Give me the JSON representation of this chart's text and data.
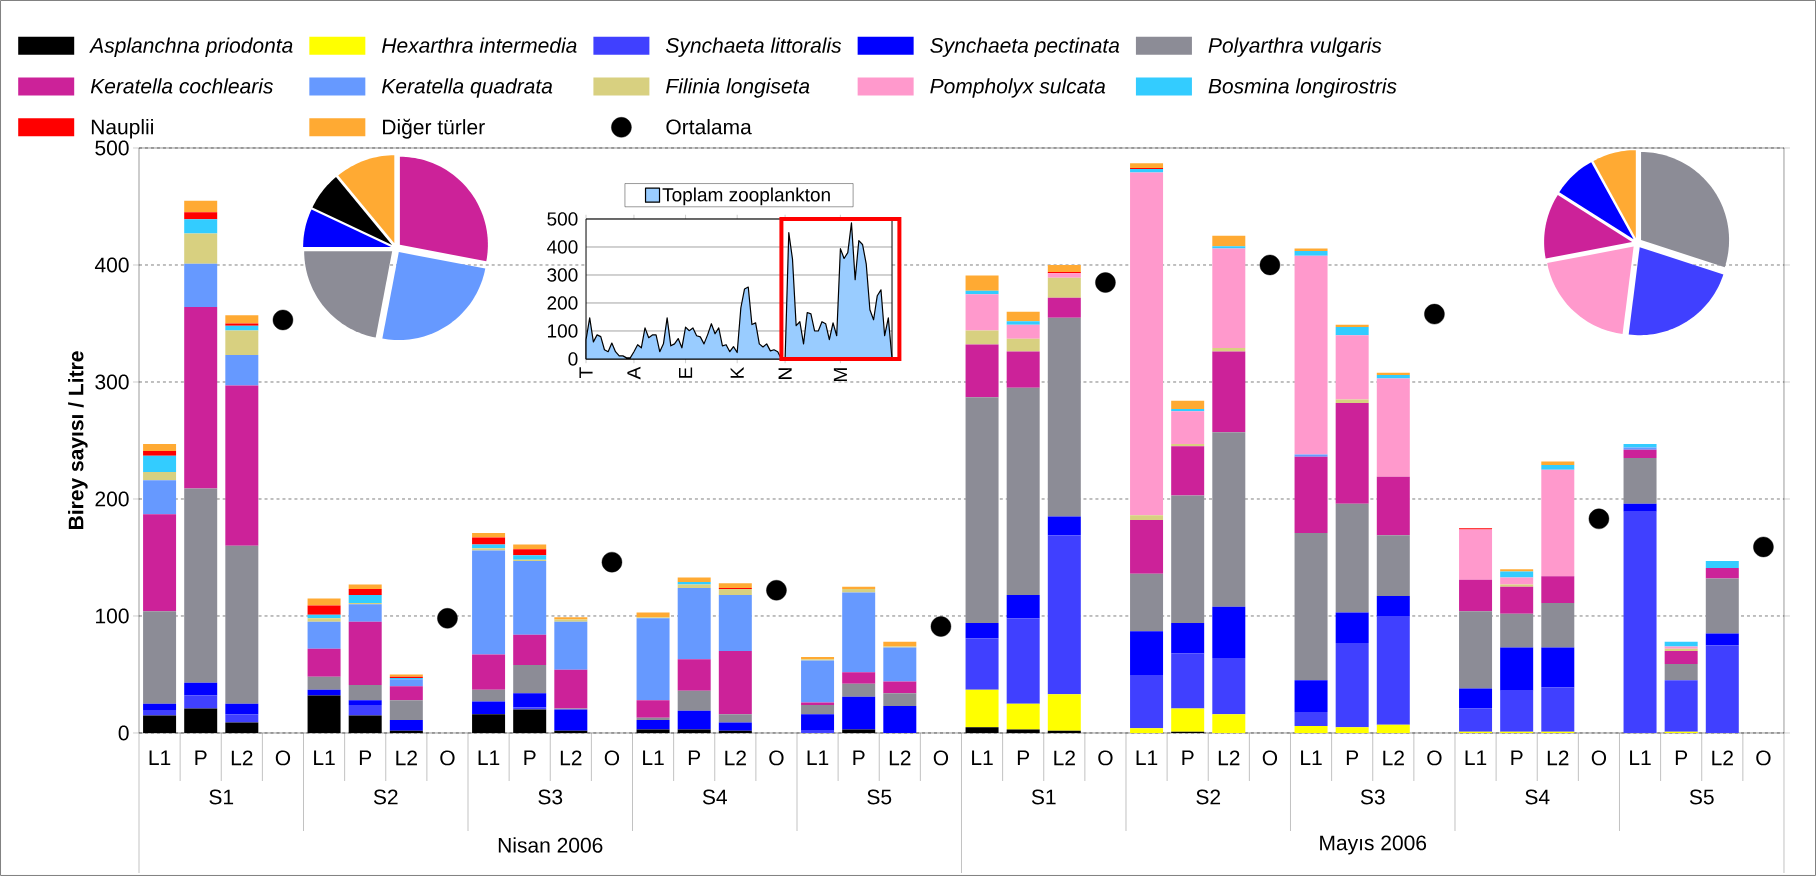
{
  "chart_data": [
    {
      "type": "bar",
      "stacked": true,
      "ylabel": "Birey sayısı / Litre",
      "ylim": [
        0,
        500
      ],
      "yticks": [
        0,
        100,
        200,
        300,
        400,
        500
      ],
      "grid": "y",
      "legend": "top",
      "marker": "circle",
      "categories": [
        "L1",
        "P",
        "L2",
        "O",
        "L1",
        "P",
        "L2",
        "O",
        "L1",
        "P",
        "L2",
        "O",
        "L1",
        "P",
        "L2",
        "O",
        "L1",
        "P",
        "L2",
        "O",
        "L1",
        "P",
        "L2",
        "O",
        "L1",
        "P",
        "L2",
        "O",
        "L1",
        "P",
        "L2",
        "O",
        "L1",
        "P",
        "L2",
        "O",
        "L1",
        "P",
        "L2",
        "O"
      ],
      "annotations": [
        "S1",
        "S2",
        "S3",
        "S4",
        "S5",
        "S1",
        "S2",
        "S3",
        "S4",
        "S5",
        "Nisan 2006",
        "Mayıs 2006"
      ],
      "series": [
        {
          "name": "Asplanchna priodonta",
          "color": "#000000",
          "values": [
            15,
            21,
            9,
            null,
            32,
            15,
            2,
            null,
            16,
            20,
            2,
            null,
            3,
            3,
            2,
            null,
            0,
            3,
            0,
            null,
            5,
            3,
            2,
            null,
            0,
            1,
            0,
            null,
            0,
            0,
            0,
            null,
            0,
            0,
            0,
            null,
            0,
            0,
            0,
            null
          ]
        },
        {
          "name": "Hexarthra intermedia",
          "color": "#ffff00",
          "values": [
            0,
            0,
            0,
            null,
            0,
            0,
            0,
            null,
            0,
            0,
            0,
            null,
            0,
            0,
            0,
            null,
            0,
            0,
            0,
            null,
            32,
            22,
            31,
            null,
            4,
            20,
            16,
            null,
            6,
            5,
            7,
            null,
            1,
            1,
            1,
            null,
            0,
            1,
            0,
            null
          ]
        },
        {
          "name": "Synchaeta littoralis",
          "color": "#4040ff",
          "values": [
            4,
            11,
            7,
            null,
            0,
            9,
            0,
            null,
            0,
            2,
            0,
            null,
            0,
            0,
            0,
            null,
            2,
            0,
            0,
            null,
            44,
            73,
            136,
            null,
            45,
            47,
            48,
            null,
            12,
            72,
            93,
            null,
            20,
            35,
            38,
            null,
            189,
            44,
            75,
            null
          ]
        },
        {
          "name": "Synchaeta pectinata",
          "color": "#0000ff",
          "values": [
            6,
            11,
            9,
            null,
            5,
            4,
            9,
            null,
            11,
            12,
            18,
            null,
            8,
            16,
            7,
            null,
            14,
            28,
            23,
            null,
            13,
            20,
            16,
            null,
            38,
            26,
            44,
            null,
            27,
            26,
            17,
            null,
            17,
            37,
            34,
            null,
            7,
            0,
            10,
            null
          ]
        },
        {
          "name": "Polyarthra vulgaris",
          "color": "#8c8c96",
          "values": [
            79,
            166,
            135,
            null,
            11,
            13,
            17,
            null,
            10,
            24,
            1,
            null,
            2,
            17,
            7,
            null,
            8,
            11,
            11,
            null,
            193,
            177,
            170,
            null,
            49,
            109,
            149,
            null,
            126,
            93,
            52,
            null,
            66,
            29,
            38,
            null,
            39,
            14,
            47,
            null
          ]
        },
        {
          "name": "Keratella cochlearis",
          "color": "#cc2299",
          "values": [
            83,
            155,
            137,
            null,
            24,
            54,
            12,
            null,
            30,
            26,
            33,
            null,
            15,
            27,
            54,
            null,
            2,
            10,
            10,
            null,
            45,
            31,
            17,
            null,
            46,
            42,
            69,
            null,
            65,
            86,
            50,
            null,
            27,
            23,
            23,
            null,
            7,
            11,
            9,
            null
          ]
        },
        {
          "name": "Keratella quadrata",
          "color": "#6699ff",
          "values": [
            29,
            37,
            26,
            null,
            23,
            15,
            6,
            null,
            89,
            63,
            41,
            null,
            70,
            61,
            48,
            null,
            36,
            68,
            29,
            null,
            0,
            0,
            0,
            null,
            0,
            0,
            0,
            null,
            2,
            0,
            0,
            null,
            0,
            0,
            0,
            null,
            2,
            0,
            0,
            null
          ]
        },
        {
          "name": "Filinia longiseta",
          "color": "#d8d080",
          "values": [
            7,
            26,
            21,
            null,
            3,
            1,
            0,
            null,
            2,
            1,
            2,
            null,
            1,
            3,
            5,
            null,
            1,
            3,
            1,
            null,
            12,
            11,
            17,
            null,
            4,
            2,
            3,
            null,
            0,
            3,
            0,
            null,
            0,
            2,
            0,
            null,
            0,
            2,
            0,
            null
          ]
        },
        {
          "name": "Pompholyx sulcata",
          "color": "#ff99cc",
          "values": [
            0,
            0,
            0,
            null,
            0,
            0,
            0,
            null,
            0,
            0,
            0,
            null,
            0,
            0,
            0,
            null,
            0,
            0,
            0,
            null,
            31,
            12,
            4,
            null,
            293,
            28,
            85,
            null,
            170,
            55,
            84,
            null,
            43,
            6,
            91,
            null,
            0,
            2,
            0,
            null
          ]
        },
        {
          "name": "Bosmina longirostris",
          "color": "#33ccff",
          "values": [
            14,
            12,
            4,
            null,
            3,
            7,
            1,
            null,
            3,
            4,
            0,
            null,
            0,
            2,
            0,
            null,
            0,
            0,
            0,
            null,
            3,
            3,
            0,
            null,
            3,
            2,
            2,
            null,
            4,
            7,
            3,
            null,
            0,
            5,
            4,
            null,
            3,
            4,
            6,
            null
          ]
        },
        {
          "name": "Nauplii",
          "color": "#ff0000",
          "values": [
            4,
            6,
            2,
            null,
            8,
            5,
            1,
            null,
            6,
            5,
            0,
            null,
            0,
            0,
            1,
            null,
            0,
            0,
            0,
            null,
            0,
            0,
            1,
            null,
            1,
            0,
            0,
            null,
            0,
            0,
            0,
            null,
            1,
            0,
            0,
            null,
            0,
            0,
            0,
            null
          ]
        },
        {
          "name": "Diğer türler",
          "color": "#ffaa33",
          "values": [
            6,
            10,
            7,
            null,
            6,
            4,
            2,
            null,
            4,
            4,
            2,
            null,
            4,
            4,
            4,
            null,
            2,
            2,
            4,
            null,
            13,
            8,
            6,
            null,
            4,
            7,
            9,
            null,
            2,
            2,
            2,
            null,
            0,
            2,
            3,
            null,
            0,
            0,
            0,
            null
          ]
        },
        {
          "name": "Ortalama",
          "type": "scatter",
          "color": "#000000",
          "values": [
            null,
            null,
            null,
            353,
            null,
            null,
            null,
            98,
            null,
            null,
            null,
            146,
            null,
            null,
            null,
            122,
            null,
            null,
            null,
            91,
            null,
            null,
            null,
            385,
            null,
            null,
            null,
            400,
            null,
            null,
            null,
            358,
            null,
            null,
            null,
            183,
            null,
            null,
            null,
            159
          ]
        }
      ]
    },
    {
      "type": "pie",
      "categories": [
        null,
        null,
        null,
        null,
        null,
        null
      ],
      "values": [
        28,
        25,
        22,
        7,
        7,
        11
      ],
      "colors": [
        "#cc2299",
        "#6699ff",
        "#8c8c96",
        "#0000ff",
        "#000000",
        "#ffaa33"
      ]
    },
    {
      "type": "area",
      "ylim": [
        0,
        500
      ],
      "yticks": [
        0,
        100,
        200,
        300,
        400,
        500
      ],
      "grid": "y",
      "legend": "top",
      "categories": [
        "T",
        null,
        null,
        null,
        null,
        null,
        null,
        null,
        null,
        null,
        null,
        null,
        null,
        "A",
        null,
        null,
        null,
        null,
        null,
        null,
        null,
        null,
        null,
        null,
        null,
        null,
        null,
        "E",
        null,
        null,
        null,
        null,
        null,
        null,
        null,
        null,
        null,
        null,
        null,
        null,
        null,
        "K",
        null,
        null,
        null,
        null,
        null,
        null,
        null,
        null,
        null,
        null,
        null,
        null,
        "N",
        null,
        null,
        null,
        null,
        null,
        null,
        null,
        null,
        null,
        null,
        null,
        null,
        null,
        null,
        "M",
        null,
        null,
        null,
        null,
        null,
        null,
        null,
        null,
        null,
        null,
        null,
        null,
        null,
        null
      ],
      "series": [
        {
          "name": "Toplam zooplankton",
          "color": "#99ccff",
          "values": [
            69,
            147,
            61,
            86,
            80,
            33,
            26,
            57,
            26,
            11,
            11,
            4,
            4,
            26,
            51,
            40,
            111,
            76,
            86,
            86,
            26,
            54,
            147,
            47,
            54,
            73,
            40,
            114,
            101,
            111,
            83,
            79,
            54,
            87,
            126,
            90,
            111,
            47,
            51,
            26,
            44,
            23,
            183,
            250,
            257,
            123,
            129,
            54,
            43,
            54,
            29,
            33,
            26,
            0,
            0,
            451,
            357,
            119,
            133,
            54,
            166,
            161,
            100,
            100,
            133,
            126,
            69,
            129,
            83,
            394,
            359,
            380,
            486,
            283,
            423,
            409,
            340,
            176,
            140,
            226,
            247,
            83,
            147,
            0
          ]
        }
      ]
    },
    {
      "type": "pie",
      "categories": [
        null,
        null,
        null,
        null,
        null,
        null
      ],
      "values": [
        30,
        22,
        20,
        12,
        8,
        8
      ],
      "colors": [
        "#8c8c96",
        "#4040ff",
        "#ff99cc",
        "#cc2299",
        "#0000ff",
        "#ffaa33"
      ]
    }
  ]
}
